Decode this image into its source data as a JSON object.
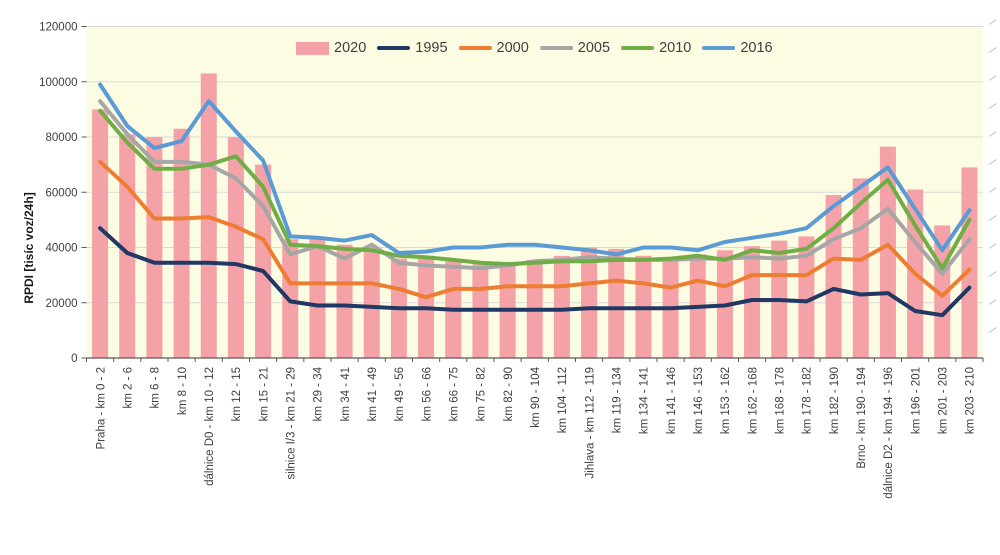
{
  "chart_data": {
    "type": "bar+line",
    "title": "",
    "ylabel": "RPDI [tisíc voz/24h]",
    "xlabel": "",
    "ylim": [
      0,
      120000
    ],
    "y_ticks": [
      0,
      20000,
      40000,
      60000,
      80000,
      100000,
      120000
    ],
    "grid": true,
    "legend_position": "top",
    "plot_bg_color": "#fcfce2",
    "grid_color": "#d9d9d9",
    "axis_color": "#595959",
    "tick_text_color": "#404040",
    "categories": [
      "Praha - km 0 - 2",
      "km 2 - 6",
      "km 6 - 8",
      "km 8 - 10",
      "dálnice D0 - km 10 - 12",
      "km 12 - 15",
      "km 15 - 21",
      "silnice I/3 - km 21 - 29",
      "km 29 - 34",
      "km 34 - 41",
      "km 41 - 49",
      "km 49 - 56",
      "km 56 - 66",
      "km 66 - 75",
      "km 75 - 82",
      "km 82 - 90",
      "km 90 - 104",
      "km 104 - 112",
      "Jihlava - km 112 - 119",
      "km 119 - 134",
      "km 134 - 141",
      "km 141 - 146",
      "km 146 - 153",
      "km 153 - 162",
      "km 162 - 168",
      "km 168 - 178",
      "km 178 - 182",
      "km 182 - 190",
      "Brno - km 190 - 194",
      "dálnice D2 - km 194 - 196",
      "km 196 - 201",
      "km 201 - 203",
      "km 203 - 210"
    ],
    "bar_series": {
      "name": "2020",
      "color": "#f4a2a8",
      "values": [
        90000,
        81000,
        80000,
        83000,
        103000,
        80000,
        70000,
        43000,
        44000,
        41000,
        40000,
        36000,
        36000,
        35000,
        34000,
        34000,
        35500,
        37000,
        40000,
        39500,
        37000,
        36000,
        37500,
        39000,
        40500,
        42500,
        44000,
        59000,
        65000,
        76500,
        61000,
        48000,
        69000
      ]
    },
    "line_series": [
      {
        "name": "1995",
        "color": "#203864",
        "values": [
          47000,
          38000,
          34500,
          34500,
          34500,
          34000,
          31500,
          20500,
          19000,
          19000,
          18500,
          18000,
          18000,
          17500,
          17500,
          17500,
          17500,
          17500,
          18000,
          18000,
          18000,
          18000,
          18500,
          19000,
          21000,
          21000,
          20500,
          25000,
          23000,
          23500,
          17000,
          15500,
          25500
        ]
      },
      {
        "name": "2000",
        "color": "#ed7d31",
        "values": [
          71000,
          62000,
          50500,
          50500,
          51000,
          47500,
          43000,
          27000,
          27000,
          27000,
          27000,
          25000,
          22000,
          25000,
          25000,
          26000,
          26000,
          26000,
          27000,
          28000,
          27000,
          25500,
          28000,
          26000,
          30000,
          30000,
          30000,
          36000,
          35500,
          41000,
          30500,
          22500,
          32000
        ]
      },
      {
        "name": "2005",
        "color": "#a6a6a6",
        "values": [
          93000,
          81000,
          71000,
          71000,
          70000,
          65000,
          55000,
          37500,
          40500,
          36000,
          41000,
          34500,
          33500,
          33000,
          32500,
          33500,
          35000,
          35500,
          36500,
          36000,
          35500,
          35500,
          36000,
          36000,
          36500,
          36000,
          37000,
          43000,
          47000,
          54000,
          42000,
          30500,
          43000
        ]
      },
      {
        "name": "2010",
        "color": "#70ad47",
        "values": [
          89500,
          78000,
          68500,
          68500,
          70000,
          73000,
          62000,
          41000,
          40500,
          39500,
          39000,
          37000,
          36500,
          35500,
          34500,
          34000,
          34500,
          35000,
          35000,
          35500,
          35500,
          36000,
          37000,
          35500,
          39000,
          38000,
          39500,
          47000,
          56000,
          64500,
          48000,
          32500,
          50000
        ]
      },
      {
        "name": "2016",
        "color": "#5b9bd5",
        "values": [
          99000,
          84000,
          76000,
          78500,
          93000,
          82000,
          71500,
          44000,
          43500,
          42500,
          44500,
          38000,
          38500,
          40000,
          40000,
          41000,
          41000,
          40000,
          39000,
          37500,
          40000,
          40000,
          39000,
          42000,
          43500,
          45000,
          47000,
          55000,
          62000,
          69000,
          54000,
          39000,
          53500
        ]
      }
    ],
    "legend_order": [
      "2020",
      "1995",
      "2000",
      "2005",
      "2010",
      "2016"
    ]
  }
}
